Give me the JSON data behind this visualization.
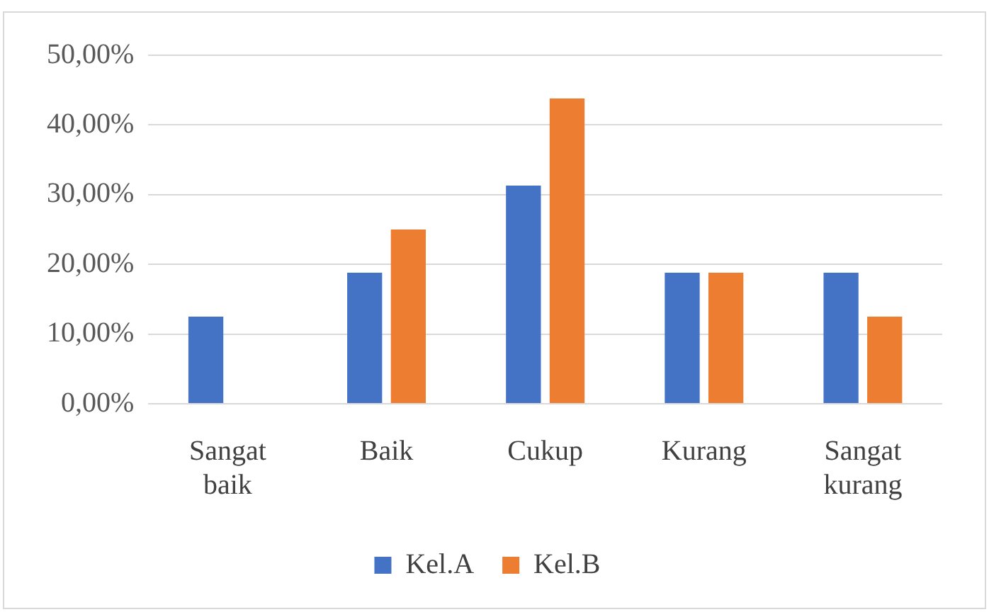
{
  "chart_data": {
    "type": "bar",
    "categories": [
      "Sangat baik",
      "Baik",
      "Cukup",
      "Kurang",
      "Sangat kurang"
    ],
    "series": [
      {
        "name": "Kel.A",
        "color": "#4472c4",
        "values": [
          12.5,
          18.8,
          31.3,
          18.8,
          18.8
        ]
      },
      {
        "name": "Kel.B",
        "color": "#ed7d31",
        "values": [
          0,
          25,
          43.8,
          18.8,
          12.5
        ]
      }
    ],
    "ylim": [
      0,
      50
    ],
    "yticks": [
      {
        "value": 0,
        "label": "0,00%"
      },
      {
        "value": 10,
        "label": "10,00%"
      },
      {
        "value": 20,
        "label": "20,00%"
      },
      {
        "value": 30,
        "label": "30,00%"
      },
      {
        "value": 40,
        "label": "40,00%"
      },
      {
        "value": 50,
        "label": "50,00%"
      }
    ],
    "grid": "y",
    "legend": "bottom"
  }
}
